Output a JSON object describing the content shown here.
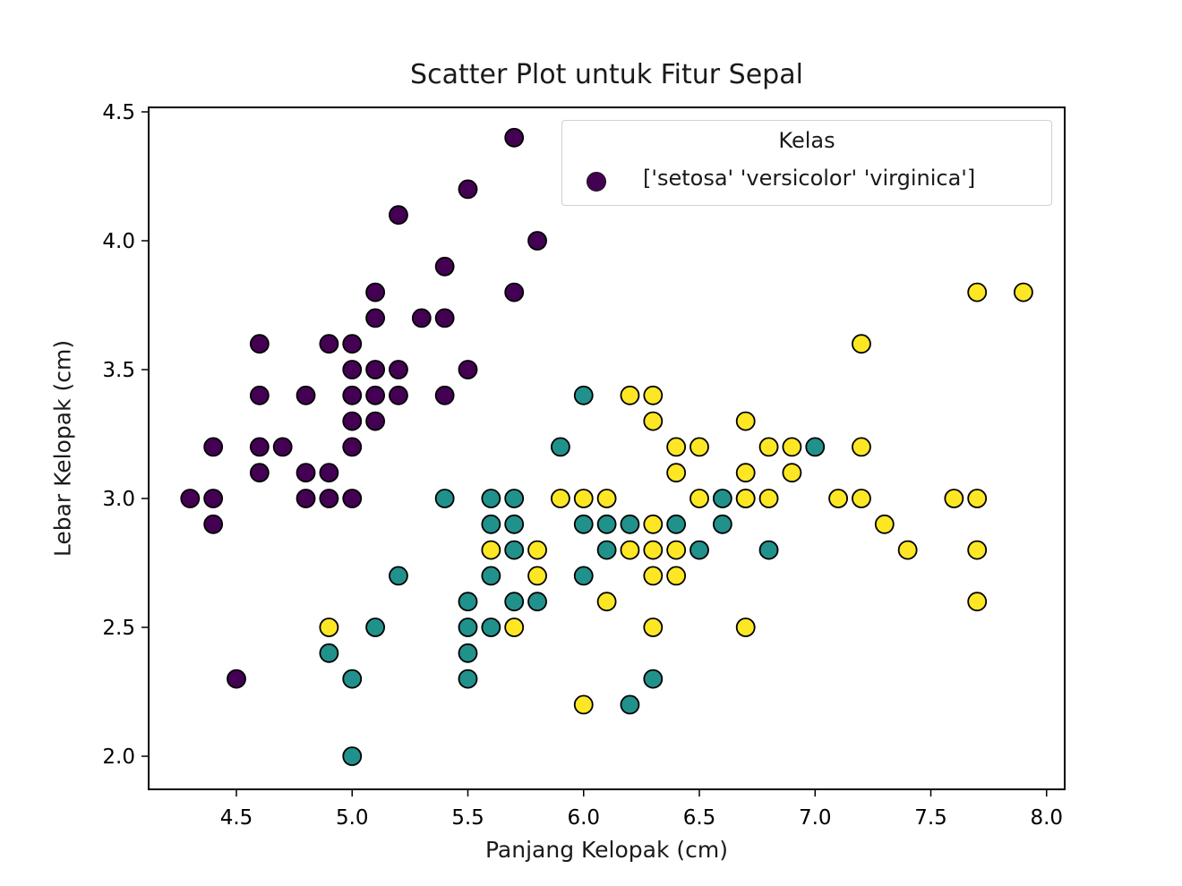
{
  "chart_data": {
    "type": "scatter",
    "title": "Scatter Plot untuk Fitur Sepal",
    "xlabel": "Panjang Kelopak (cm)",
    "ylabel": "Lebar Kelopak (cm)",
    "xlim": [
      4.1,
      8.06
    ],
    "ylim": [
      1.88,
      4.52
    ],
    "xticks": [
      "4.5",
      "5.0",
      "5.5",
      "6.0",
      "6.5",
      "7.0",
      "7.5",
      "8.0"
    ],
    "yticks": [
      "2.0",
      "2.5",
      "3.0",
      "3.5",
      "4.0",
      "4.5"
    ],
    "grid": false,
    "legend": {
      "title": "Kelas",
      "position": "upper right",
      "entries": [
        "['setosa' 'versicolor' 'virginica']"
      ]
    },
    "colors": {
      "setosa": "#440154",
      "versicolor": "#21918c",
      "virginica": "#fde725",
      "edge": "#000000"
    },
    "series": [
      {
        "name": "setosa",
        "points": [
          [
            5.7,
            4.4
          ],
          [
            5.5,
            4.2
          ],
          [
            5.2,
            4.1
          ],
          [
            5.8,
            4.0
          ],
          [
            5.4,
            3.9
          ],
          [
            5.1,
            3.8
          ],
          [
            5.7,
            3.8
          ],
          [
            5.1,
            3.7
          ],
          [
            5.3,
            3.7
          ],
          [
            5.4,
            3.7
          ],
          [
            4.6,
            3.6
          ],
          [
            4.9,
            3.6
          ],
          [
            5.0,
            3.6
          ],
          [
            5.0,
            3.5
          ],
          [
            5.1,
            3.5
          ],
          [
            5.2,
            3.5
          ],
          [
            5.5,
            3.5
          ],
          [
            4.6,
            3.4
          ],
          [
            4.8,
            3.4
          ],
          [
            5.0,
            3.4
          ],
          [
            5.1,
            3.4
          ],
          [
            5.2,
            3.4
          ],
          [
            5.4,
            3.4
          ],
          [
            5.0,
            3.3
          ],
          [
            5.1,
            3.3
          ],
          [
            4.4,
            3.2
          ],
          [
            4.6,
            3.2
          ],
          [
            4.7,
            3.2
          ],
          [
            5.0,
            3.2
          ],
          [
            4.6,
            3.1
          ],
          [
            4.8,
            3.1
          ],
          [
            4.9,
            3.1
          ],
          [
            4.3,
            3.0
          ],
          [
            4.4,
            3.0
          ],
          [
            4.8,
            3.0
          ],
          [
            4.9,
            3.0
          ],
          [
            5.0,
            3.0
          ],
          [
            4.4,
            2.9
          ],
          [
            4.5,
            2.3
          ]
        ]
      },
      {
        "name": "versicolor",
        "points": [
          [
            6.0,
            3.4
          ],
          [
            5.9,
            3.2
          ],
          [
            7.0,
            3.2
          ],
          [
            5.4,
            3.0
          ],
          [
            5.6,
            3.0
          ],
          [
            5.7,
            3.0
          ],
          [
            6.6,
            3.0
          ],
          [
            6.7,
            3.0
          ],
          [
            5.6,
            2.9
          ],
          [
            5.7,
            2.9
          ],
          [
            6.0,
            2.9
          ],
          [
            6.1,
            2.9
          ],
          [
            6.2,
            2.9
          ],
          [
            6.4,
            2.9
          ],
          [
            6.6,
            2.9
          ],
          [
            5.7,
            2.8
          ],
          [
            6.1,
            2.8
          ],
          [
            6.5,
            2.8
          ],
          [
            6.8,
            2.8
          ],
          [
            5.2,
            2.7
          ],
          [
            5.6,
            2.7
          ],
          [
            6.0,
            2.7
          ],
          [
            5.5,
            2.6
          ],
          [
            5.7,
            2.6
          ],
          [
            5.8,
            2.6
          ],
          [
            5.1,
            2.5
          ],
          [
            5.5,
            2.5
          ],
          [
            5.6,
            2.5
          ],
          [
            4.9,
            2.4
          ],
          [
            5.5,
            2.4
          ],
          [
            5.0,
            2.3
          ],
          [
            5.5,
            2.3
          ],
          [
            6.3,
            2.3
          ],
          [
            6.2,
            2.2
          ],
          [
            5.0,
            2.0
          ]
        ]
      },
      {
        "name": "virginica",
        "points": [
          [
            7.7,
            3.8
          ],
          [
            7.9,
            3.8
          ],
          [
            7.2,
            3.6
          ],
          [
            6.2,
            3.4
          ],
          [
            6.3,
            3.4
          ],
          [
            6.3,
            3.3
          ],
          [
            6.7,
            3.3
          ],
          [
            6.4,
            3.2
          ],
          [
            6.5,
            3.2
          ],
          [
            6.8,
            3.2
          ],
          [
            6.9,
            3.2
          ],
          [
            7.2,
            3.2
          ],
          [
            6.4,
            3.1
          ],
          [
            6.7,
            3.1
          ],
          [
            6.9,
            3.1
          ],
          [
            5.9,
            3.0
          ],
          [
            6.0,
            3.0
          ],
          [
            6.1,
            3.0
          ],
          [
            6.5,
            3.0
          ],
          [
            6.7,
            3.0
          ],
          [
            6.8,
            3.0
          ],
          [
            7.1,
            3.0
          ],
          [
            7.2,
            3.0
          ],
          [
            7.6,
            3.0
          ],
          [
            7.7,
            3.0
          ],
          [
            6.3,
            2.9
          ],
          [
            7.3,
            2.9
          ],
          [
            5.6,
            2.8
          ],
          [
            5.8,
            2.8
          ],
          [
            6.2,
            2.8
          ],
          [
            6.3,
            2.8
          ],
          [
            6.4,
            2.8
          ],
          [
            7.4,
            2.8
          ],
          [
            7.7,
            2.8
          ],
          [
            5.8,
            2.7
          ],
          [
            6.3,
            2.7
          ],
          [
            6.4,
            2.7
          ],
          [
            6.1,
            2.6
          ],
          [
            7.7,
            2.6
          ],
          [
            4.9,
            2.5
          ],
          [
            5.7,
            2.5
          ],
          [
            6.3,
            2.5
          ],
          [
            6.7,
            2.5
          ],
          [
            6.0,
            2.2
          ]
        ]
      }
    ]
  }
}
